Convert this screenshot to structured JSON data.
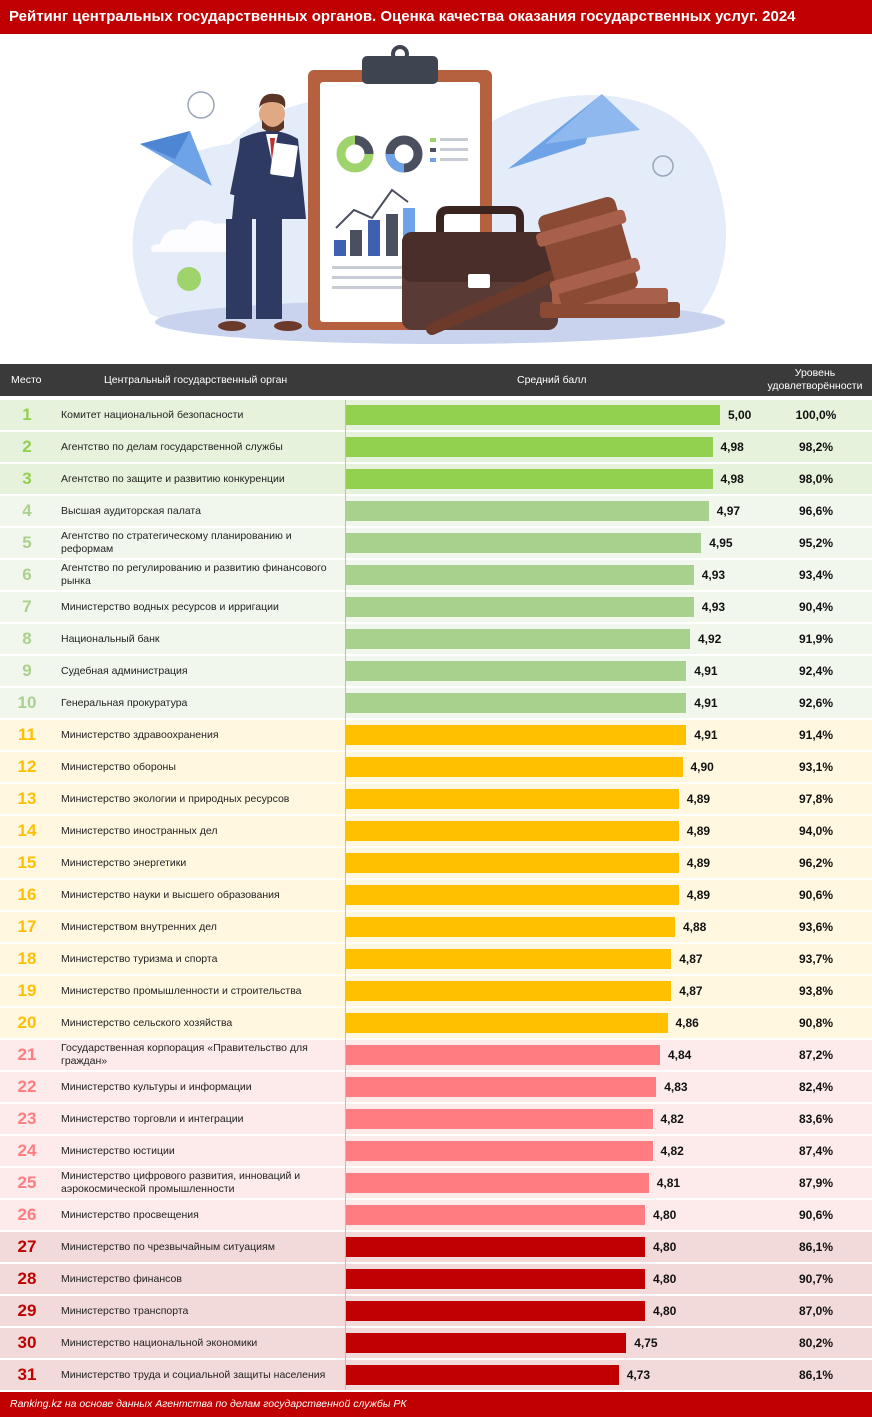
{
  "title": "Рейтинг центральных государственных органов. Оценка качества оказания государственных услуг. 2024",
  "headers": {
    "place": "Место",
    "organ": "Центральный государственный орган",
    "score": "Средний балл",
    "satisfaction": "Уровень удовлетворённости"
  },
  "footer": "Ranking.kz на основе данных Агентства по делам государственной службы РК",
  "colors": {
    "header_bg": "#c00000",
    "table_header_bg": "#3a3a3a",
    "tiers": [
      {
        "bar": "#92d050",
        "row_bg": "#e6f2dc",
        "rank": "#92d050"
      },
      {
        "bar": "#a9d18e",
        "row_bg": "#f2f7ee",
        "rank": "#a9d18e"
      },
      {
        "bar": "#ffc000",
        "row_bg": "#fff7e0",
        "rank": "#ffc000"
      },
      {
        "bar": "#ff7c80",
        "row_bg": "#fdeaea",
        "rank": "#ff7c80"
      },
      {
        "bar": "#c00000",
        "row_bg": "#f3dada",
        "rank": "#c00000"
      }
    ]
  },
  "chart_data": {
    "type": "bar",
    "orientation": "horizontal",
    "xlim": [
      4.0,
      5.0
    ],
    "rows": [
      {
        "rank": "1",
        "organ": "Комитет национальной безопасности",
        "score": 5.0,
        "score_label": "5,00",
        "satisfaction": "100,0%",
        "tier": 0
      },
      {
        "rank": "2",
        "organ": "Агентство по делам государственной службы",
        "score": 4.98,
        "score_label": "4,98",
        "satisfaction": "98,2%",
        "tier": 0
      },
      {
        "rank": "3",
        "organ": "Агентство по защите и развитию конкуренции",
        "score": 4.98,
        "score_label": "4,98",
        "satisfaction": "98,0%",
        "tier": 0
      },
      {
        "rank": "4",
        "organ": "Высшая аудиторская палата",
        "score": 4.97,
        "score_label": "4,97",
        "satisfaction": "96,6%",
        "tier": 1
      },
      {
        "rank": "5",
        "organ": "Агентство по стратегическому планированию и реформам",
        "score": 4.95,
        "score_label": "4,95",
        "satisfaction": "95,2%",
        "tier": 1
      },
      {
        "rank": "6",
        "organ": "Агентство по регулированию и развитию финансового рынка",
        "score": 4.93,
        "score_label": "4,93",
        "satisfaction": "93,4%",
        "tier": 1
      },
      {
        "rank": "7",
        "organ": "Министерство водных ресурсов и ирригации",
        "score": 4.93,
        "score_label": "4,93",
        "satisfaction": "90,4%",
        "tier": 1
      },
      {
        "rank": "8",
        "organ": "Национальный банк",
        "score": 4.92,
        "score_label": "4,92",
        "satisfaction": "91,9%",
        "tier": 1
      },
      {
        "rank": "9",
        "organ": "Судебная администрация",
        "score": 4.91,
        "score_label": "4,91",
        "satisfaction": "92,4%",
        "tier": 1
      },
      {
        "rank": "10",
        "organ": "Генеральная прокуратура",
        "score": 4.91,
        "score_label": "4,91",
        "satisfaction": "92,6%",
        "tier": 1
      },
      {
        "rank": "11",
        "organ": "Министерство здравоохранения",
        "score": 4.91,
        "score_label": "4,91",
        "satisfaction": "91,4%",
        "tier": 2
      },
      {
        "rank": "12",
        "organ": "Министерство обороны",
        "score": 4.9,
        "score_label": "4,90",
        "satisfaction": "93,1%",
        "tier": 2
      },
      {
        "rank": "13",
        "organ": "Министерство экологии и природных ресурсов",
        "score": 4.89,
        "score_label": "4,89",
        "satisfaction": "97,8%",
        "tier": 2
      },
      {
        "rank": "14",
        "organ": "Министерство иностранных дел",
        "score": 4.89,
        "score_label": "4,89",
        "satisfaction": "94,0%",
        "tier": 2
      },
      {
        "rank": "15",
        "organ": "Министерство энергетики",
        "score": 4.89,
        "score_label": "4,89",
        "satisfaction": "96,2%",
        "tier": 2
      },
      {
        "rank": "16",
        "organ": "Министерство науки и высшего образования",
        "score": 4.89,
        "score_label": "4,89",
        "satisfaction": "90,6%",
        "tier": 2
      },
      {
        "rank": "17",
        "organ": "Министерством внутренних дел",
        "score": 4.88,
        "score_label": "4,88",
        "satisfaction": "93,6%",
        "tier": 2
      },
      {
        "rank": "18",
        "organ": "Министерство туризма и спорта",
        "score": 4.87,
        "score_label": "4,87",
        "satisfaction": "93,7%",
        "tier": 2
      },
      {
        "rank": "19",
        "organ": "Министерство промышленности и строительства",
        "score": 4.87,
        "score_label": "4,87",
        "satisfaction": "93,8%",
        "tier": 2
      },
      {
        "rank": "20",
        "organ": "Министерство сельского хозяйства",
        "score": 4.86,
        "score_label": "4,86",
        "satisfaction": "90,8%",
        "tier": 2
      },
      {
        "rank": "21",
        "organ": "Государственная корпорация «Правительство для граждан»",
        "score": 4.84,
        "score_label": "4,84",
        "satisfaction": "87,2%",
        "tier": 3
      },
      {
        "rank": "22",
        "organ": "Министерство культуры и информации",
        "score": 4.83,
        "score_label": "4,83",
        "satisfaction": "82,4%",
        "tier": 3
      },
      {
        "rank": "23",
        "organ": "Министерство торговли и интеграции",
        "score": 4.82,
        "score_label": "4,82",
        "satisfaction": "83,6%",
        "tier": 3
      },
      {
        "rank": "24",
        "organ": "Министерство юстиции",
        "score": 4.82,
        "score_label": "4,82",
        "satisfaction": "87,4%",
        "tier": 3
      },
      {
        "rank": "25",
        "organ": "Министерство цифрового развития, инноваций и аэрокосмической промышленности",
        "score": 4.81,
        "score_label": "4,81",
        "satisfaction": "87,9%",
        "tier": 3
      },
      {
        "rank": "26",
        "organ": "Министерство просвещения",
        "score": 4.8,
        "score_label": "4,80",
        "satisfaction": "90,6%",
        "tier": 3
      },
      {
        "rank": "27",
        "organ": "Министерство по чрезвычайным ситуациям",
        "score": 4.8,
        "score_label": "4,80",
        "satisfaction": "86,1%",
        "tier": 4
      },
      {
        "rank": "28",
        "organ": "Министерство финансов",
        "score": 4.8,
        "score_label": "4,80",
        "satisfaction": "90,7%",
        "tier": 4
      },
      {
        "rank": "29",
        "organ": "Министерство транспорта",
        "score": 4.8,
        "score_label": "4,80",
        "satisfaction": "87,0%",
        "tier": 4
      },
      {
        "rank": "30",
        "organ": "Министерство национальной экономики",
        "score": 4.75,
        "score_label": "4,75",
        "satisfaction": "80,2%",
        "tier": 4
      },
      {
        "rank": "31",
        "organ": "Министерство труда и социальной защиты населения",
        "score": 4.73,
        "score_label": "4,73",
        "satisfaction": "86,1%",
        "tier": 4
      }
    ]
  }
}
